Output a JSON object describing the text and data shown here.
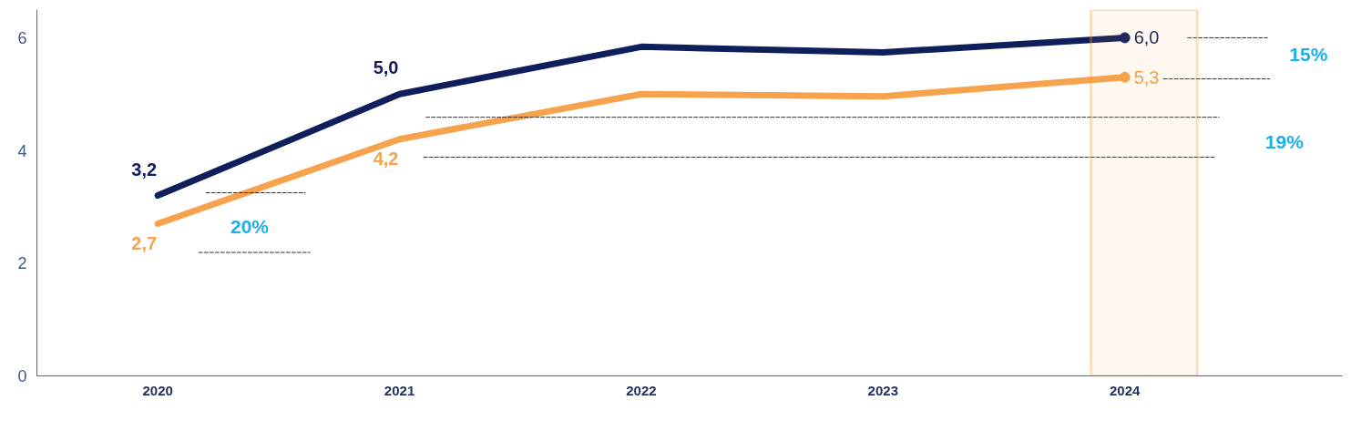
{
  "chart_data": {
    "type": "line",
    "x": [
      2020,
      2021,
      2022,
      2023,
      2024
    ],
    "series": [
      {
        "color": "#0f1f5c",
        "values": [
          3.2,
          5.0,
          5.84,
          5.74,
          6.0
        ],
        "value_labels": [
          "3,2",
          "5,0",
          null,
          null,
          "6,0"
        ]
      },
      {
        "color": "#f7a24c",
        "values": [
          2.7,
          4.2,
          5.0,
          4.96,
          5.3
        ],
        "value_labels": [
          "2,7",
          "4,2",
          null,
          null,
          "5,3"
        ]
      },
      {
        "type": "line",
        "line_style": "dashed",
        "color": "#333333",
        "x": [
          2020.2,
          2020.61
        ],
        "values": [
          3.25,
          3.25
        ]
      },
      {
        "type": "line",
        "line_style": "dashed",
        "color": "#333333",
        "x": [
          2020.17,
          2020.63
        ],
        "values": [
          2.19,
          2.19
        ]
      },
      {
        "type": "line",
        "line_style": "dashed",
        "color": "#333333",
        "x": [
          2021.11,
          2024.39
        ],
        "values": [
          4.59,
          4.59
        ]
      },
      {
        "type": "line",
        "line_style": "dashed",
        "color": "#333333",
        "x": [
          2021.1,
          2024.37
        ],
        "values": [
          3.88,
          3.88
        ]
      },
      {
        "type": "line",
        "line_style": "dashed",
        "color": "#333333",
        "x": [
          2024.26,
          2024.59
        ],
        "values": [
          6.0,
          6.0
        ]
      },
      {
        "type": "line",
        "line_style": "dashed",
        "color": "#333333",
        "x": [
          2024.16,
          2024.6
        ],
        "values": [
          5.27,
          5.27
        ]
      }
    ],
    "annotations": [
      "20%",
      "19%",
      "15%"
    ],
    "bands": [
      {
        "axis": "x",
        "from": 2023.86,
        "to": 2024.3,
        "color": "#f0a040"
      }
    ],
    "xlim": [
      2019.5,
      2024.9
    ],
    "ylim": [
      0,
      6.5
    ],
    "xticks": [
      2020,
      2021,
      2022,
      2023,
      2024
    ],
    "yticks": [
      0,
      2,
      4,
      6
    ],
    "grid": false
  }
}
